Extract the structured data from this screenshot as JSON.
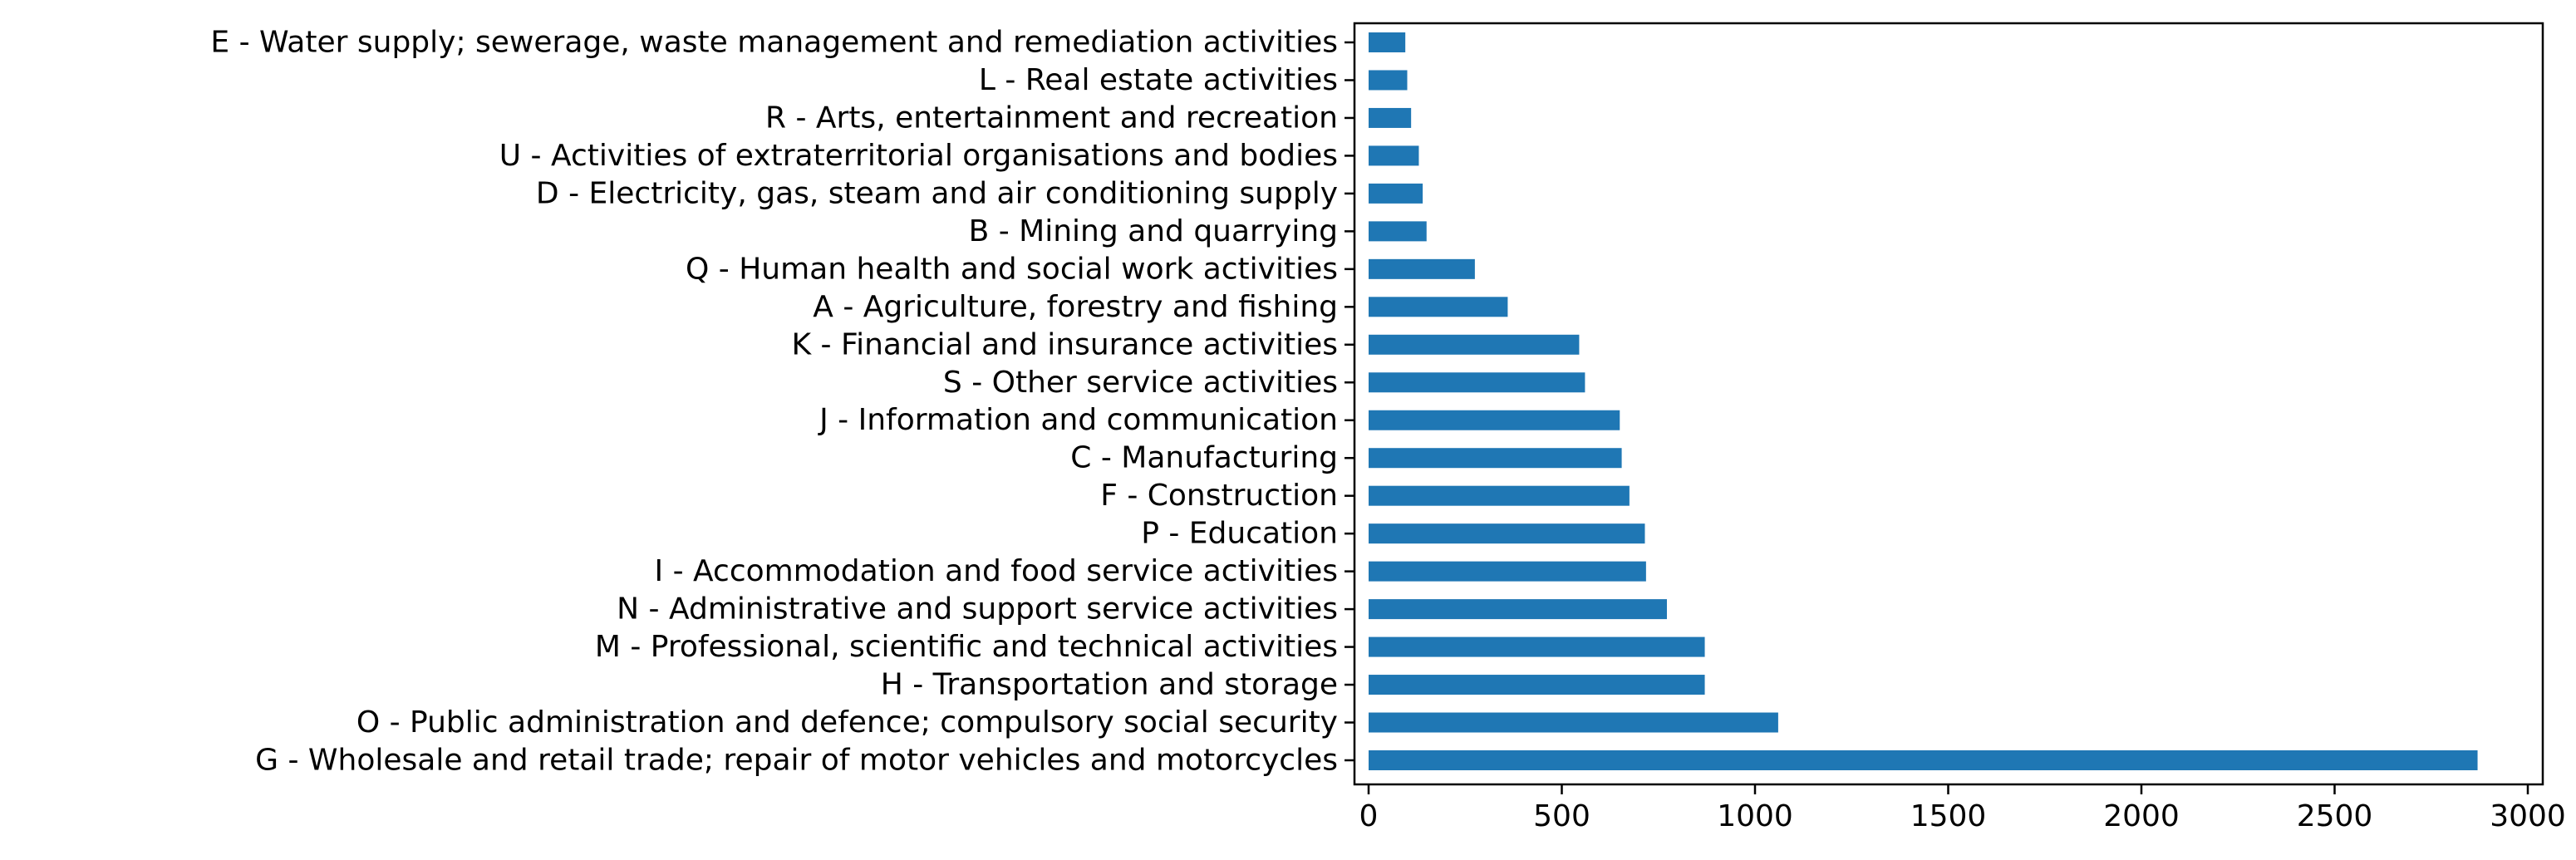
{
  "chart_data": {
    "type": "bar",
    "orientation": "horizontal",
    "title": "",
    "xlabel": "",
    "ylabel": "",
    "xlim": [
      0,
      3000
    ],
    "xticks": [
      0,
      500,
      1000,
      1500,
      2000,
      2500,
      3000
    ],
    "grid": false,
    "legend": "none",
    "bar_color": "#1f77b4",
    "categories": [
      "E - Water supply; sewerage, waste management and remediation activities",
      "L - Real estate activities",
      "R - Arts, entertainment and recreation",
      "U - Activities of extraterritorial organisations and bodies",
      "D - Electricity, gas, steam and air conditioning supply",
      "B - Mining and quarrying",
      "Q - Human health and social work activities",
      "A - Agriculture, forestry and fishing",
      "K - Financial and insurance activities",
      "S - Other service activities",
      "J - Information and communication",
      "C - Manufacturing",
      "F - Construction",
      "P - Education",
      "I - Accommodation and food service activities",
      "N - Administrative and support service activities",
      "M - Professional, scientific and technical activities",
      "H - Transportation and storage",
      "O - Public administration and defence; compulsory social security",
      "G - Wholesale and retail trade; repair of motor vehicles and motorcycles"
    ],
    "values": [
      95,
      100,
      110,
      130,
      140,
      150,
      275,
      360,
      545,
      560,
      650,
      655,
      675,
      715,
      718,
      772,
      870,
      870,
      1060,
      2870
    ]
  }
}
